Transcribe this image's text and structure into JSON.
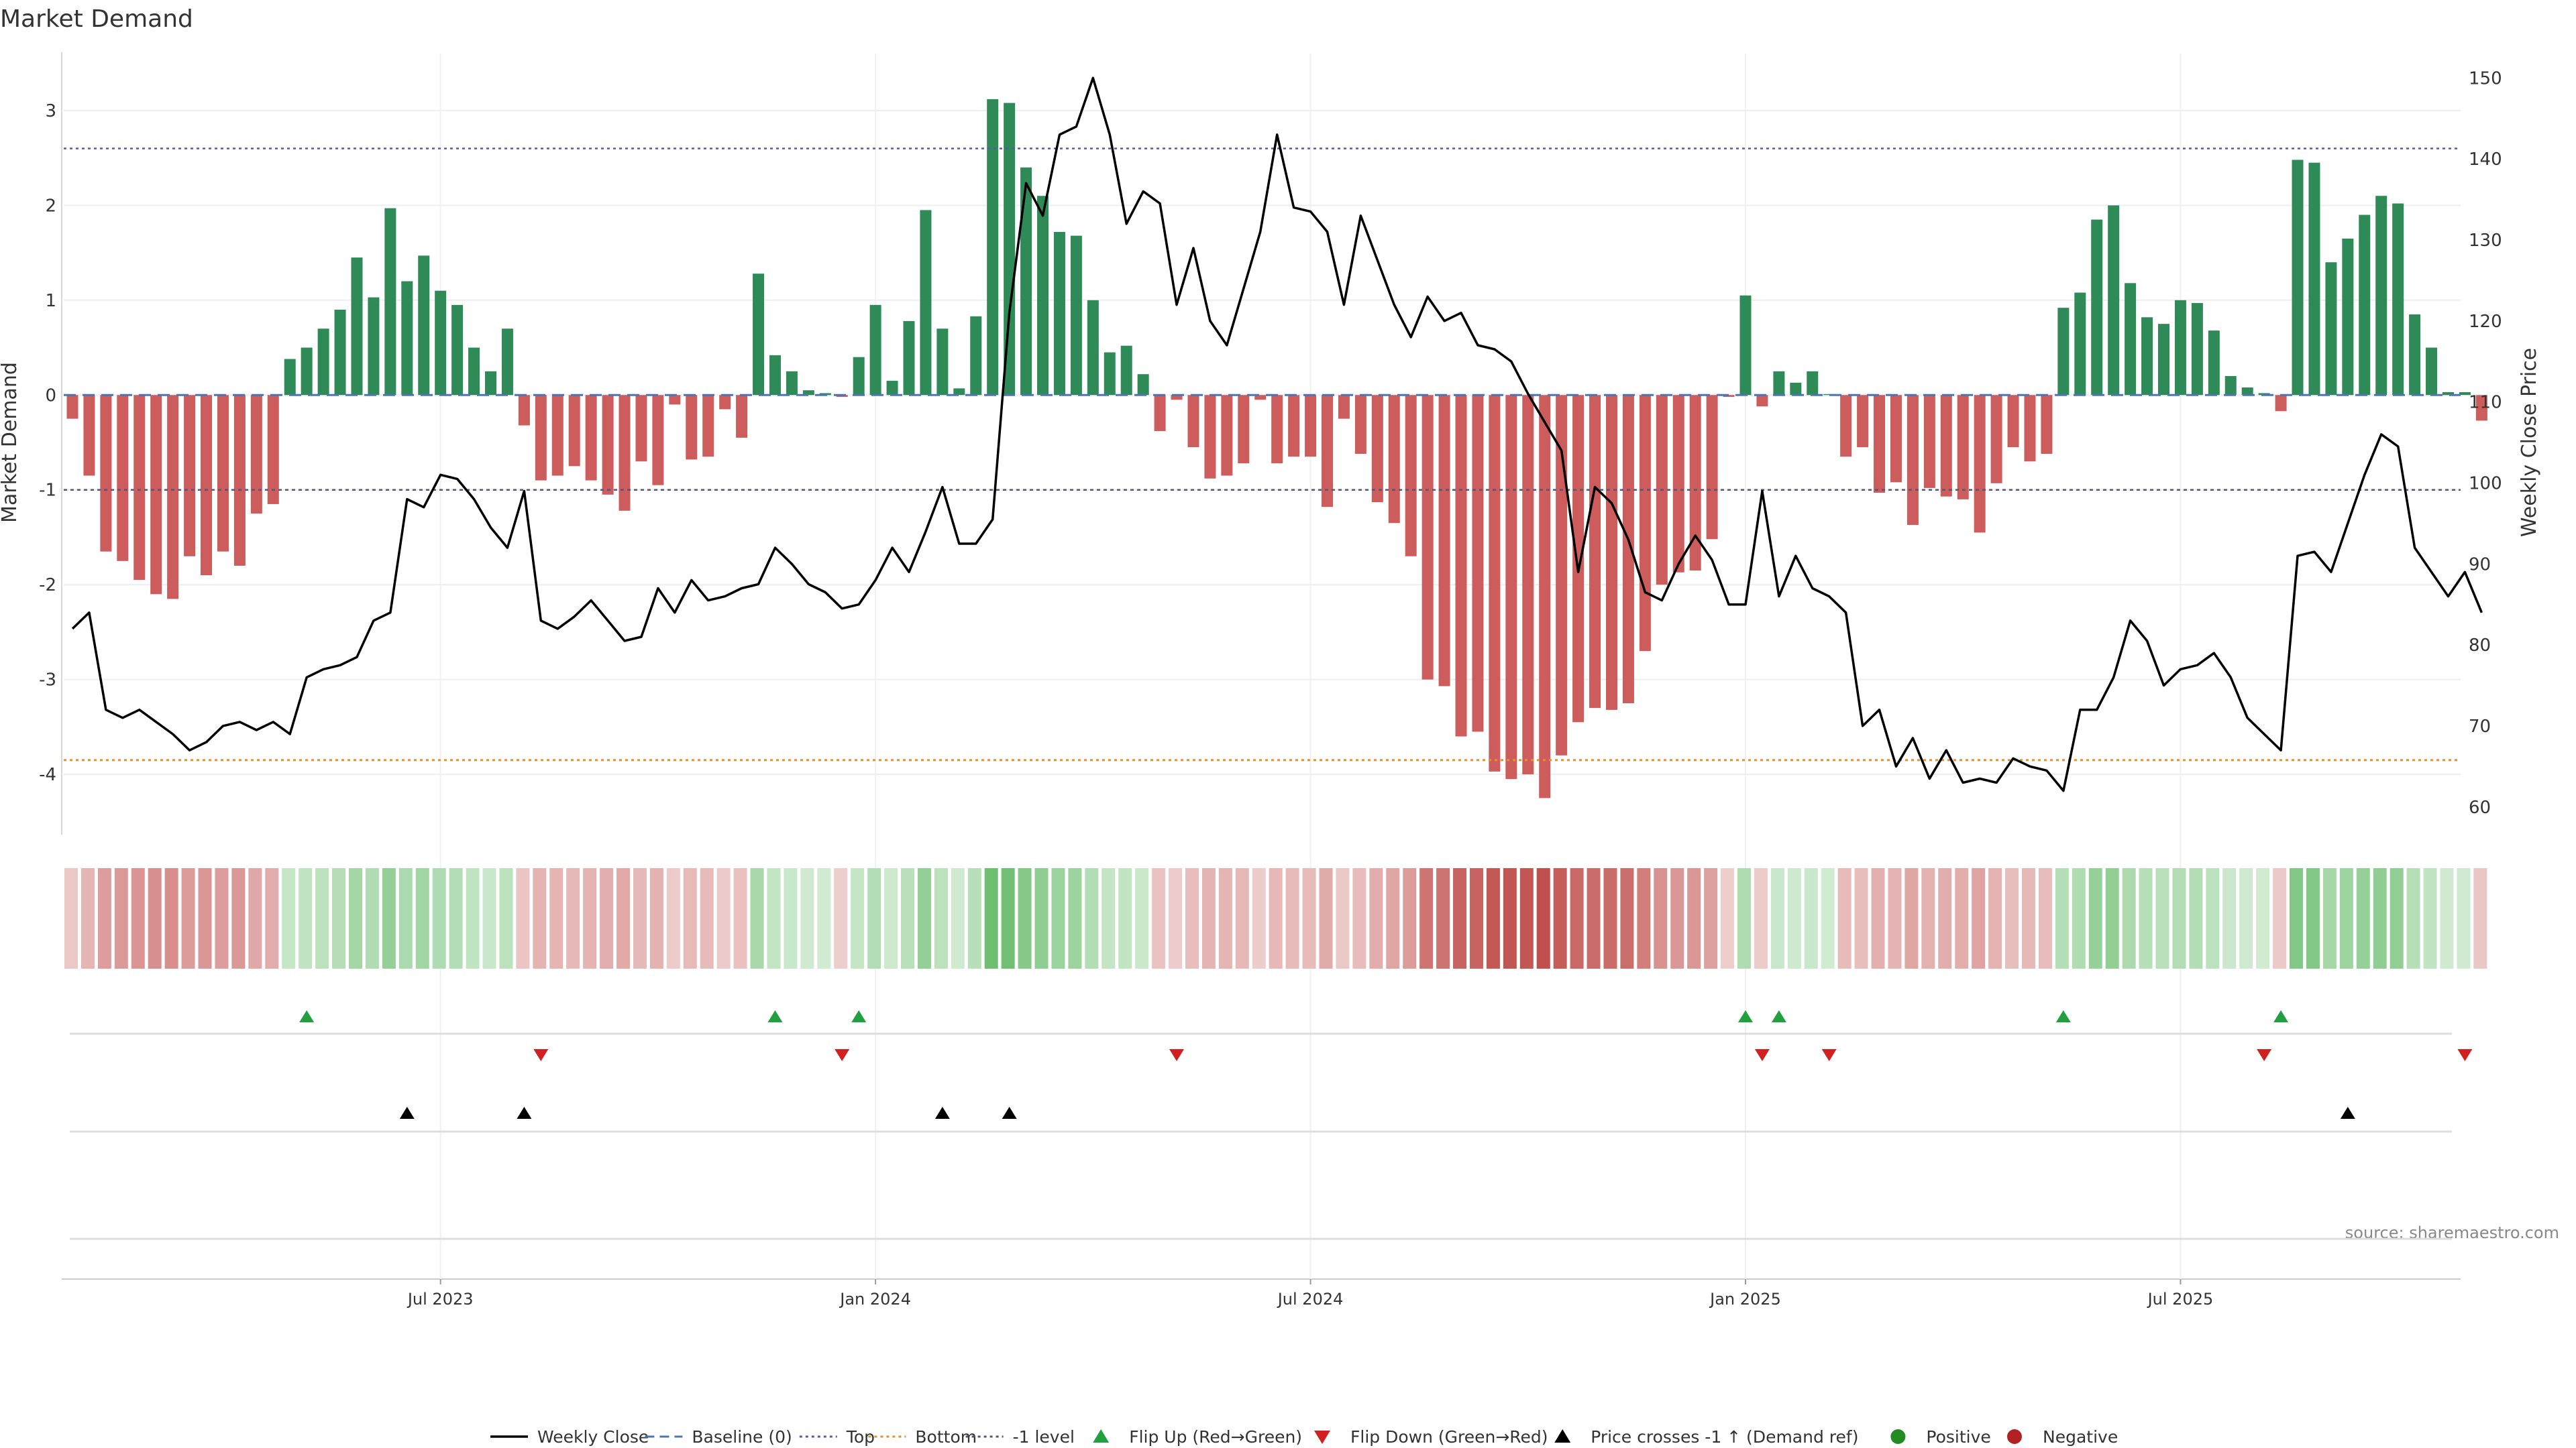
{
  "chart_data": {
    "type": "bar",
    "title": "Market Demand",
    "ylabel": "Market Demand",
    "y2label": "Weekly Close Price",
    "source": "source: sharemaestro.com",
    "ylim": [
      -4.6,
      3.6
    ],
    "y2lim": [
      57,
      153
    ],
    "y_ticks": [
      3,
      2,
      1,
      0,
      -1,
      -2,
      -3,
      -4
    ],
    "y2_ticks": [
      150,
      140,
      130,
      120,
      110,
      100,
      90,
      80,
      70,
      60
    ],
    "x_tick_labels": [
      {
        "label": "Jul 2023",
        "week": 22
      },
      {
        "label": "Jan 2024",
        "week": 48
      },
      {
        "label": "Jul 2024",
        "week": 74
      },
      {
        "label": "Jan 2025",
        "week": 100
      },
      {
        "label": "Jul 2025",
        "week": 126
      }
    ],
    "reference_lines": {
      "top": 2.6,
      "bottom": -3.85,
      "minus_one": -1.0,
      "baseline": 0
    },
    "colors": {
      "positive": "#2e8b57",
      "negative": "#cd5c5c",
      "line": "#000000",
      "top": "#5a5aa8",
      "bottom": "#e59320",
      "minus_one": "#555577",
      "baseline": "#4a77b4",
      "flip_up": "#22a040",
      "flip_down": "#d02020",
      "cross": "#000000",
      "legend_positive": "#228b22",
      "legend_negative": "#b22222"
    },
    "demand": [
      -0.25,
      -0.85,
      -1.65,
      -1.75,
      -1.95,
      -2.1,
      -2.15,
      -1.7,
      -1.9,
      -1.65,
      -1.8,
      -1.25,
      -1.15,
      0.38,
      0.5,
      0.7,
      0.9,
      1.45,
      1.03,
      1.97,
      1.2,
      1.47,
      1.1,
      0.95,
      0.5,
      0.25,
      0.7,
      -0.32,
      -0.9,
      -0.85,
      -0.75,
      -0.9,
      -1.05,
      -1.22,
      -0.7,
      -0.95,
      -0.1,
      -0.68,
      -0.65,
      -0.15,
      -0.45,
      1.28,
      0.42,
      0.25,
      0.05,
      0.02,
      -0.02,
      0.4,
      0.95,
      0.15,
      0.78,
      1.95,
      0.7,
      0.07,
      0.83,
      3.12,
      3.08,
      2.4,
      2.1,
      1.72,
      1.68,
      1.0,
      0.45,
      0.52,
      0.22,
      -0.38,
      -0.05,
      -0.55,
      -0.88,
      -0.85,
      -0.72,
      -0.05,
      -0.72,
      -0.65,
      -0.65,
      -1.18,
      -0.25,
      -0.62,
      -1.13,
      -1.35,
      -1.7,
      -3.0,
      -3.07,
      -3.6,
      -3.55,
      -3.97,
      -4.05,
      -4.0,
      -4.25,
      -3.8,
      -3.45,
      -3.3,
      -3.32,
      -3.25,
      -2.7,
      -2.0,
      -1.87,
      -1.85,
      -1.52,
      -0.02,
      1.05,
      -0.12,
      0.25,
      0.13,
      0.25,
      0.01,
      -0.65,
      -0.55,
      -1.03,
      -0.92,
      -1.37,
      -0.98,
      -1.07,
      -1.1,
      -1.45,
      -0.93,
      -0.55,
      -0.7,
      -0.62,
      0.92,
      1.08,
      1.85,
      2.0,
      1.18,
      0.82,
      0.75,
      1.0,
      0.97,
      0.68,
      0.2,
      0.08,
      0.02,
      -0.17,
      2.48,
      2.45,
      1.4,
      1.65,
      1.9,
      2.1,
      2.02,
      0.85,
      0.5,
      0.03,
      0.03,
      -0.27
    ],
    "close": [
      82,
      84,
      72,
      71,
      72,
      70.5,
      69,
      67,
      68,
      70,
      70.5,
      69.5,
      70.5,
      69,
      76,
      77,
      77.5,
      78.5,
      83,
      84,
      98,
      97,
      101,
      100.5,
      98,
      94.5,
      92,
      99,
      83,
      82,
      83.5,
      85.5,
      83,
      80.5,
      81,
      87,
      84,
      88,
      85.5,
      86,
      87,
      87.5,
      92,
      90,
      87.5,
      86.5,
      84.5,
      85,
      88,
      92,
      89,
      94,
      99.5,
      92.5,
      92.5,
      95.5,
      121,
      137,
      133,
      143,
      144,
      150,
      143,
      132,
      136,
      134.5,
      122,
      129,
      120,
      117,
      124,
      131,
      143,
      134,
      133.5,
      131,
      122,
      133,
      127.5,
      122,
      118,
      123,
      120,
      121,
      117,
      116.5,
      115,
      111,
      107.5,
      104,
      89,
      99.5,
      97.5,
      93,
      86.5,
      85.5,
      90,
      93.5,
      90.5,
      85,
      85,
      99,
      86,
      91,
      87,
      86,
      84,
      70,
      72,
      65,
      68.5,
      63.5,
      67,
      63,
      63.5,
      63,
      66,
      65,
      64.5,
      62,
      72,
      72,
      76,
      83,
      80.5,
      75,
      77,
      77.5,
      79,
      76,
      71,
      69,
      67,
      91,
      91.5,
      89,
      95,
      101,
      106,
      104.5,
      92,
      89,
      86,
      89,
      84
    ],
    "flip_up_weeks": [
      14,
      42,
      47,
      100,
      102,
      119,
      132
    ],
    "flip_down_weeks": [
      28,
      46,
      66,
      101,
      105,
      131,
      143
    ],
    "cross_weeks": [
      20,
      27,
      52,
      56,
      136
    ],
    "legend": [
      {
        "key": "line",
        "label": "Weekly Close"
      },
      {
        "key": "baseline",
        "label": "Baseline (0)"
      },
      {
        "key": "top",
        "label": "Top"
      },
      {
        "key": "bottom",
        "label": "Bottom"
      },
      {
        "key": "minus_one",
        "label": "-1 level"
      },
      {
        "key": "flip_up",
        "label": "Flip Up (Red→Green)"
      },
      {
        "key": "flip_down",
        "label": "Flip Down (Green→Red)"
      },
      {
        "key": "cross",
        "label": "Price crosses -1 ↑ (Demand ref)"
      },
      {
        "key": "positive",
        "label": "Positive"
      },
      {
        "key": "negative",
        "label": "Negative"
      }
    ]
  }
}
